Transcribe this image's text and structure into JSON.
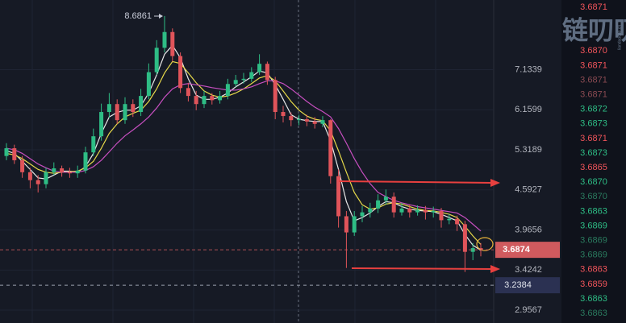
{
  "chart_data": {
    "type": "candlestick",
    "log_scale": true,
    "grid": true,
    "ylim": [
      2.82,
      9.21
    ],
    "yticks": [
      2.9567,
      3.4242,
      3.9656,
      4.5927,
      5.3189,
      6.1599,
      7.1339
    ],
    "up_color": "#2ebd85",
    "down_color": "#e0545a",
    "open": [
      5.2,
      5.35,
      5.12,
      4.9,
      4.76,
      4.69,
      4.9,
      4.97,
      4.9,
      4.88,
      4.93,
      5.27,
      5.59,
      6.11,
      6.29,
      5.93,
      6.29,
      6.11,
      6.48,
      7.07,
      7.73,
      8.19,
      7.5,
      6.67,
      6.48,
      6.29,
      6.48,
      6.38,
      6.48,
      6.77,
      6.87,
      6.9,
      7.07,
      7.29,
      6.87,
      6.11,
      6.02,
      5.93,
      5.95,
      5.9,
      5.85,
      5.93,
      4.83,
      4.17,
      3.93,
      4.17,
      4.23,
      4.29,
      4.42,
      4.48,
      4.23,
      4.29,
      4.23,
      4.27,
      4.23,
      4.25,
      4.11,
      4.13,
      4.05,
      3.66,
      3.71
    ],
    "high": [
      5.45,
      5.42,
      5.2,
      4.98,
      4.85,
      4.98,
      5.08,
      5.02,
      4.98,
      5.02,
      5.38,
      5.75,
      6.3,
      6.55,
      6.4,
      6.45,
      6.4,
      6.65,
      7.3,
      7.95,
      8.6861,
      8.3,
      7.6,
      6.8,
      6.6,
      6.6,
      6.55,
      6.6,
      6.9,
      7.0,
      7.05,
      7.2,
      7.55,
      7.35,
      6.95,
      6.25,
      6.1,
      6.05,
      6.05,
      6.0,
      6.02,
      5.95,
      4.95,
      4.25,
      4.25,
      4.33,
      4.38,
      4.52,
      4.6,
      4.55,
      4.38,
      4.35,
      4.34,
      4.33,
      4.32,
      4.3,
      4.2,
      4.18,
      4.1,
      3.78,
      3.78
    ],
    "low": [
      5.12,
      5.05,
      4.8,
      4.62,
      4.55,
      4.62,
      4.85,
      4.82,
      4.8,
      4.8,
      4.88,
      5.2,
      5.5,
      5.98,
      5.85,
      5.85,
      6.0,
      6.02,
      6.4,
      7.0,
      7.6,
      7.35,
      6.55,
      6.35,
      6.15,
      6.2,
      6.28,
      6.3,
      6.4,
      6.7,
      6.78,
      6.82,
      7.0,
      6.75,
      5.95,
      5.88,
      5.8,
      5.82,
      5.8,
      5.75,
      5.78,
      4.7,
      4.0,
      3.45,
      3.88,
      4.08,
      4.15,
      4.22,
      4.35,
      4.15,
      4.18,
      4.15,
      4.18,
      4.12,
      4.15,
      4.0,
      4.05,
      3.95,
      3.4,
      3.55,
      3.6
    ],
    "close": [
      5.35,
      5.12,
      4.9,
      4.76,
      4.69,
      4.9,
      4.97,
      4.9,
      4.88,
      4.93,
      5.27,
      5.59,
      6.11,
      6.29,
      5.93,
      6.29,
      6.11,
      6.48,
      7.07,
      7.73,
      8.19,
      7.5,
      6.67,
      6.48,
      6.29,
      6.48,
      6.38,
      6.48,
      6.77,
      6.87,
      6.9,
      7.07,
      7.29,
      6.87,
      6.11,
      6.02,
      5.93,
      5.95,
      5.9,
      5.85,
      5.93,
      4.83,
      4.17,
      3.93,
      4.17,
      4.23,
      4.29,
      4.42,
      4.48,
      4.23,
      4.29,
      4.23,
      4.27,
      4.23,
      4.25,
      4.11,
      4.13,
      4.05,
      3.66,
      3.71,
      3.69
    ],
    "ma": [
      {
        "color": "#e8e8e8",
        "values": [
          5.3,
          5.25,
          5.1,
          4.95,
          4.8,
          4.78,
          4.85,
          4.92,
          4.92,
          4.9,
          5.0,
          5.25,
          5.65,
          6.0,
          6.1,
          6.15,
          6.15,
          6.25,
          6.55,
          7.0,
          7.55,
          7.8,
          7.45,
          6.9,
          6.5,
          6.4,
          6.4,
          6.45,
          6.55,
          6.7,
          6.82,
          6.95,
          7.1,
          7.05,
          6.75,
          6.4,
          6.05,
          5.95,
          5.92,
          5.9,
          5.9,
          5.5,
          4.95,
          4.4,
          4.1,
          4.15,
          4.22,
          4.32,
          4.4,
          4.38,
          4.32,
          4.28,
          4.26,
          4.25,
          4.24,
          4.2,
          4.15,
          4.1,
          3.9,
          3.75,
          3.68
        ]
      },
      {
        "color": "#e6d94a",
        "values": [
          5.25,
          5.22,
          5.15,
          5.05,
          4.95,
          4.9,
          4.88,
          4.9,
          4.91,
          4.92,
          4.98,
          5.1,
          5.35,
          5.65,
          5.85,
          6.0,
          6.08,
          6.15,
          6.35,
          6.65,
          7.05,
          7.35,
          7.3,
          7.05,
          6.8,
          6.6,
          6.5,
          6.45,
          6.48,
          6.55,
          6.65,
          6.78,
          6.92,
          6.98,
          6.85,
          6.6,
          6.35,
          6.15,
          6.02,
          5.95,
          5.92,
          5.7,
          5.3,
          4.9,
          4.55,
          4.35,
          4.28,
          4.3,
          4.36,
          4.38,
          4.36,
          4.32,
          4.28,
          4.26,
          4.25,
          4.23,
          4.2,
          4.15,
          4.02,
          3.88,
          3.76
        ]
      },
      {
        "color": "#c74fc0",
        "values": [
          5.35,
          5.32,
          5.25,
          5.15,
          5.05,
          4.98,
          4.92,
          4.9,
          4.9,
          4.9,
          4.93,
          5.0,
          5.12,
          5.28,
          5.45,
          5.6,
          5.72,
          5.85,
          6.0,
          6.2,
          6.45,
          6.65,
          6.75,
          6.78,
          6.75,
          6.72,
          6.68,
          6.65,
          6.62,
          6.62,
          6.65,
          6.7,
          6.78,
          6.85,
          6.85,
          6.78,
          6.65,
          6.5,
          6.35,
          6.22,
          6.12,
          6.0,
          5.75,
          5.45,
          5.15,
          4.9,
          4.7,
          4.55,
          4.48,
          4.42,
          4.38,
          4.35,
          4.32,
          4.3,
          4.28,
          4.26,
          4.24,
          4.22,
          4.15,
          4.05,
          3.95
        ]
      }
    ],
    "current_price": 3.6874,
    "current_color": "#d05a5e",
    "marker_price": 3.2384,
    "marker_color": "#2b3152"
  },
  "watermark": {
    "title": "链叨叨",
    "url": "liandaodao.cn"
  },
  "trades": {
    "rows": [
      {
        "price": "3.6871",
        "color": "#f0545a",
        "slot": 0
      },
      {
        "price": "3.6870",
        "color": "#f0545a",
        "slot": 3
      },
      {
        "price": "3.6871",
        "color": "#f0545a",
        "slot": 4
      },
      {
        "price": "3.6871",
        "color": "#8a4a52",
        "slot": 5
      },
      {
        "price": "3.6871",
        "color": "#8a4a52",
        "slot": 6
      },
      {
        "price": "3.6872",
        "color": "#2ebd85",
        "slot": 7
      },
      {
        "price": "3.6873",
        "color": "#2ebd85",
        "slot": 8
      },
      {
        "price": "3.6871",
        "color": "#f0545a",
        "slot": 9
      },
      {
        "price": "3.6873",
        "color": "#2ebd85",
        "slot": 10
      },
      {
        "price": "3.6865",
        "color": "#f0545a",
        "slot": 11
      },
      {
        "price": "3.6870",
        "color": "#2ebd85",
        "slot": 12
      },
      {
        "price": "3.6870",
        "color": "#2a7a5e",
        "slot": 13
      },
      {
        "price": "3.6863",
        "color": "#2ebd85",
        "slot": 14
      },
      {
        "price": "3.6869",
        "color": "#2ebd85",
        "slot": 15
      },
      {
        "price": "3.6869",
        "color": "#2a7a5e",
        "slot": 16
      },
      {
        "price": "3.6869",
        "color": "#2a7a5e",
        "slot": 17
      },
      {
        "price": "3.6863",
        "color": "#f0545a",
        "slot": 18
      },
      {
        "price": "3.6859",
        "color": "#f0545a",
        "slot": 19
      },
      {
        "price": "3.6863",
        "color": "#2ebd85",
        "slot": 20
      },
      {
        "price": "3.6863",
        "color": "#2a7a5e",
        "slot": 21
      }
    ]
  }
}
